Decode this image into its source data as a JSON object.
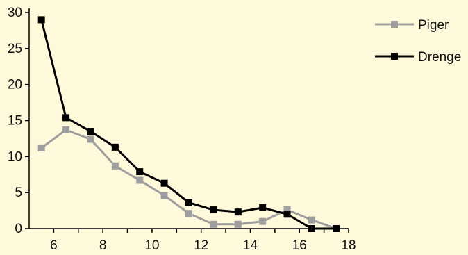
{
  "chart_data": {
    "type": "line",
    "x": [
      5.5,
      6.5,
      7.5,
      8.5,
      9.5,
      10.5,
      11.5,
      12.5,
      13.5,
      14.5,
      15.5,
      16.5,
      17.5
    ],
    "series": [
      {
        "name": "Piger",
        "color": "#9E9E9E",
        "values": [
          11.2,
          13.7,
          12.4,
          8.7,
          6.7,
          4.6,
          2.1,
          0.6,
          0.6,
          1.0,
          2.6,
          1.2,
          0
        ]
      },
      {
        "name": "Drenge",
        "color": "#000000",
        "values": [
          29.0,
          15.4,
          13.5,
          11.3,
          7.9,
          6.3,
          3.6,
          2.6,
          2.3,
          2.9,
          2.0,
          0,
          0
        ]
      }
    ],
    "xticks": [
      "6",
      "8",
      "10",
      "12",
      "14",
      "16",
      "18"
    ],
    "xtick_values": [
      6,
      8,
      10,
      12,
      14,
      16,
      18
    ],
    "yticks": [
      "0",
      "5",
      "10",
      "15",
      "20",
      "25",
      "30"
    ],
    "ytick_values": [
      0,
      5,
      10,
      15,
      20,
      25,
      30
    ],
    "xlim": [
      5,
      18
    ],
    "ylim": [
      0,
      30
    ],
    "title": "",
    "xlabel": "",
    "ylabel": "",
    "grid": false,
    "legend_position": "top-right",
    "background": "#FFF9DC"
  }
}
